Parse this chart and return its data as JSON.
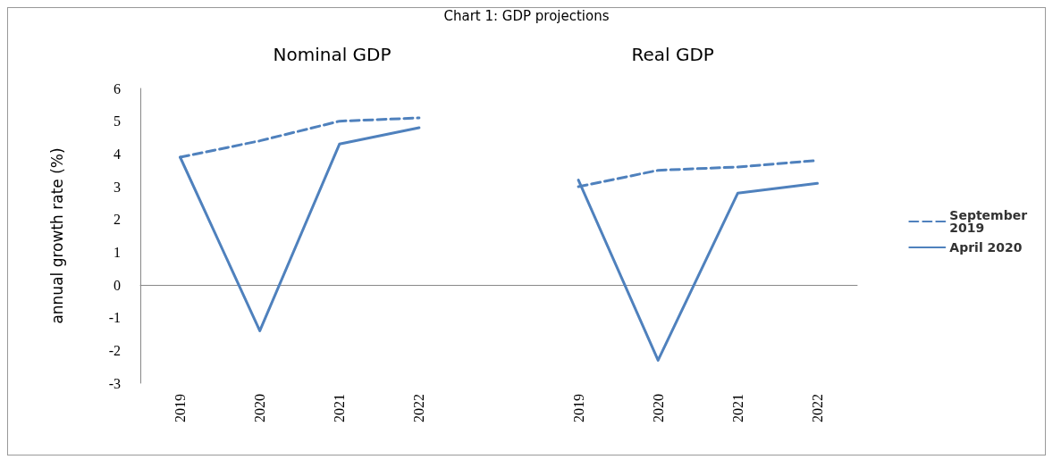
{
  "chart_data": {
    "type": "line",
    "title": "Chart 1: GDP projections",
    "ylabel": "annual growth rate (%)",
    "annotations": [
      "Nominal GDP",
      "Real GDP"
    ],
    "categories": [
      "2019",
      "2020",
      "2021",
      "2022",
      null,
      "2019",
      "2020",
      "2021",
      "2022"
    ],
    "series": [
      {
        "name": "September 2019",
        "color": "#4f81bd",
        "line_style": "dashed",
        "values": [
          3.9,
          4.4,
          5.0,
          5.1,
          null,
          3.0,
          3.5,
          3.6,
          3.8
        ]
      },
      {
        "name": "April 2020",
        "color": "#4f81bd",
        "line_style": "solid",
        "values": [
          3.9,
          -1.4,
          4.3,
          4.8,
          null,
          3.2,
          -2.3,
          2.8,
          3.1
        ]
      }
    ],
    "ylim": [
      -3,
      6
    ],
    "yticks": [
      -3,
      -2,
      -1,
      0,
      1,
      2,
      3,
      4,
      5,
      6
    ],
    "legend": "right",
    "marker": "none"
  }
}
